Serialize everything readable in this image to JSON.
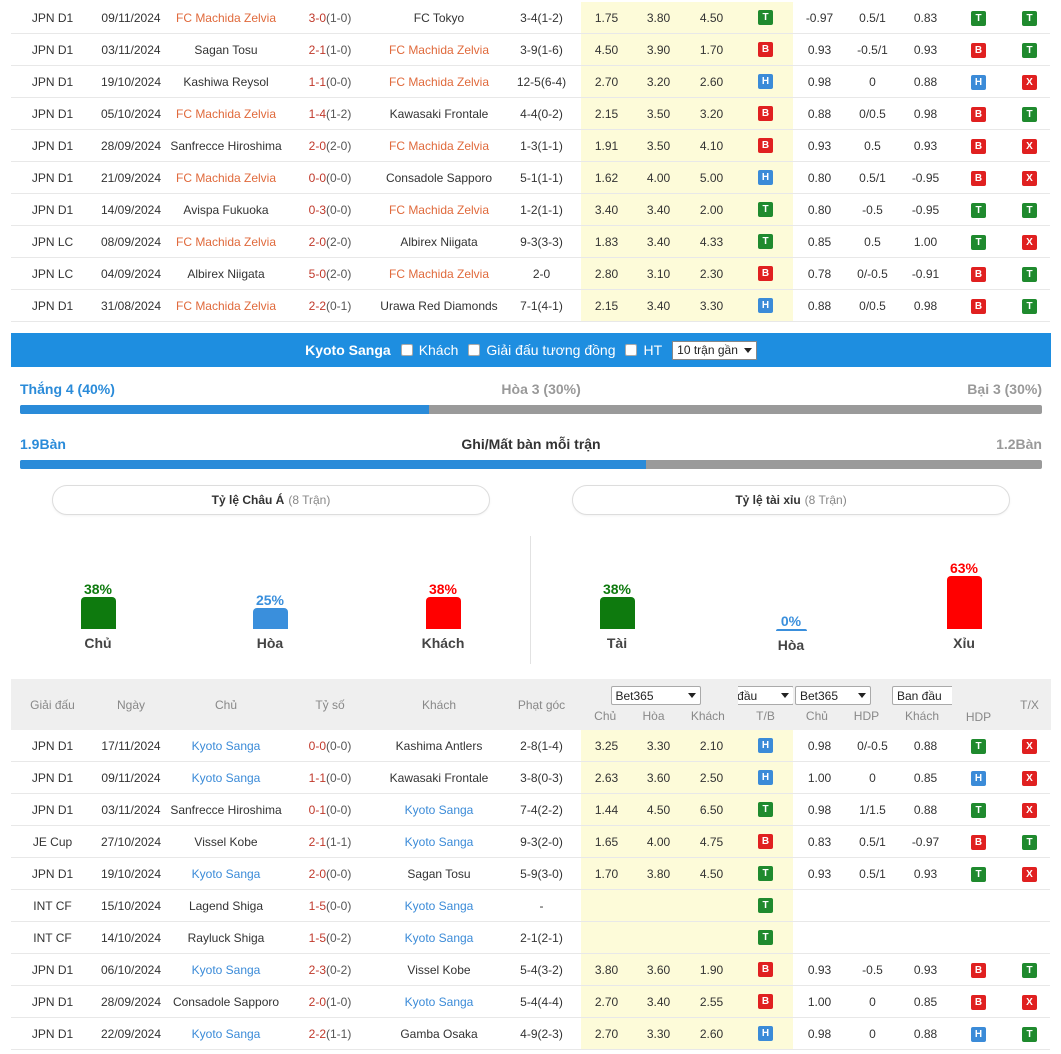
{
  "top_rows": [
    {
      "league": "JPN D1",
      "date": "09/11/2024",
      "home": "FC Machida Zelvia",
      "home_hl": true,
      "score": "3-0",
      "ht": "(1-0)",
      "away": "FC Tokyo",
      "away_hl": false,
      "corner": "3-4(1-2)",
      "o1": "1.75",
      "o2": "3.80",
      "o3": "4.50",
      "tb": "T",
      "h1": "-0.97",
      "h2": "0.5/1",
      "h3": "0.83",
      "hdp": "T",
      "tx": "T"
    },
    {
      "league": "JPN D1",
      "date": "03/11/2024",
      "home": "Sagan Tosu",
      "home_hl": false,
      "score": "2-1",
      "ht": "(1-0)",
      "away": "FC Machida Zelvia",
      "away_hl": true,
      "corner": "3-9(1-6)",
      "o1": "4.50",
      "o2": "3.90",
      "o3": "1.70",
      "tb": "B",
      "h1": "0.93",
      "h2": "-0.5/1",
      "h3": "0.93",
      "hdp": "B",
      "tx": "T"
    },
    {
      "league": "JPN D1",
      "date": "19/10/2024",
      "home": "Kashiwa Reysol",
      "home_hl": false,
      "score": "1-1",
      "ht": "(0-0)",
      "away": "FC Machida Zelvia",
      "away_hl": true,
      "corner": "12-5(6-4)",
      "o1": "2.70",
      "o2": "3.20",
      "o3": "2.60",
      "tb": "H",
      "h1": "0.98",
      "h2": "0",
      "h3": "0.88",
      "hdp": "H",
      "tx": "X"
    },
    {
      "league": "JPN D1",
      "date": "05/10/2024",
      "home": "FC Machida Zelvia",
      "home_hl": true,
      "score": "1-4",
      "ht": "(1-2)",
      "away": "Kawasaki Frontale",
      "away_hl": false,
      "corner": "4-4(0-2)",
      "o1": "2.15",
      "o2": "3.50",
      "o3": "3.20",
      "tb": "B",
      "h1": "0.88",
      "h2": "0/0.5",
      "h3": "0.98",
      "hdp": "B",
      "tx": "T"
    },
    {
      "league": "JPN D1",
      "date": "28/09/2024",
      "home": "Sanfrecce Hiroshima",
      "home_hl": false,
      "score": "2-0",
      "ht": "(2-0)",
      "away": "FC Machida Zelvia",
      "away_hl": true,
      "corner": "1-3(1-1)",
      "o1": "1.91",
      "o2": "3.50",
      "o3": "4.10",
      "tb": "B",
      "h1": "0.93",
      "h2": "0.5",
      "h3": "0.93",
      "hdp": "B",
      "tx": "X"
    },
    {
      "league": "JPN D1",
      "date": "21/09/2024",
      "home": "FC Machida Zelvia",
      "home_hl": true,
      "score": "0-0",
      "ht": "(0-0)",
      "away": "Consadole Sapporo",
      "away_hl": false,
      "corner": "5-1(1-1)",
      "o1": "1.62",
      "o2": "4.00",
      "o3": "5.00",
      "tb": "H",
      "h1": "0.80",
      "h2": "0.5/1",
      "h3": "-0.95",
      "hdp": "B",
      "tx": "X"
    },
    {
      "league": "JPN D1",
      "date": "14/09/2024",
      "home": "Avispa Fukuoka",
      "home_hl": false,
      "score": "0-3",
      "ht": "(0-0)",
      "away": "FC Machida Zelvia",
      "away_hl": true,
      "corner": "1-2(1-1)",
      "o1": "3.40",
      "o2": "3.40",
      "o3": "2.00",
      "tb": "T",
      "h1": "0.80",
      "h2": "-0.5",
      "h3": "-0.95",
      "hdp": "T",
      "tx": "T"
    },
    {
      "league": "JPN LC",
      "date": "08/09/2024",
      "home": "FC Machida Zelvia",
      "home_hl": true,
      "score": "2-0",
      "ht": "(2-0)",
      "away": "Albirex Niigata",
      "away_hl": false,
      "corner": "9-3(3-3)",
      "o1": "1.83",
      "o2": "3.40",
      "o3": "4.33",
      "tb": "T",
      "h1": "0.85",
      "h2": "0.5",
      "h3": "1.00",
      "hdp": "T",
      "tx": "X"
    },
    {
      "league": "JPN LC",
      "date": "04/09/2024",
      "home": "Albirex Niigata",
      "home_hl": false,
      "score": "5-0",
      "ht": "(2-0)",
      "away": "FC Machida Zelvia",
      "away_hl": true,
      "corner": "2-0",
      "o1": "2.80",
      "o2": "3.10",
      "o3": "2.30",
      "tb": "B",
      "h1": "0.78",
      "h2": "0/-0.5",
      "h3": "-0.91",
      "hdp": "B",
      "tx": "T"
    },
    {
      "league": "JPN D1",
      "date": "31/08/2024",
      "home": "FC Machida Zelvia",
      "home_hl": true,
      "score": "2-2",
      "ht": "(0-1)",
      "away": "Urawa Red Diamonds",
      "away_hl": false,
      "corner": "7-1(4-1)",
      "o1": "2.15",
      "o2": "3.40",
      "o3": "3.30",
      "tb": "H",
      "h1": "0.88",
      "h2": "0/0.5",
      "h3": "0.98",
      "hdp": "B",
      "tx": "T"
    }
  ],
  "section": {
    "team": "Kyoto Sanga",
    "opt_away": "Khách",
    "opt_similar": "Giải đấu tương đồng",
    "opt_ht": "HT",
    "select": "10 trận gần"
  },
  "summary": {
    "win": "Thắng 4 (40%)",
    "draw": "Hòa 3 (30%)",
    "loss": "Bại 3 (30%)",
    "win_fraction": 0.4,
    "goals_for": "1.9Bàn",
    "goals_title": "Ghi/Mất bàn mỗi trận",
    "goals_against": "1.2Bàn",
    "goals_fraction": 0.613
  },
  "asian": {
    "title": "Tỷ lệ Châu Á",
    "count": "(8 Trận)",
    "bars": [
      {
        "pct": "38%",
        "label": "Chủ",
        "value": 38,
        "color": "#0e7a0e"
      },
      {
        "pct": "25%",
        "label": "Hòa",
        "value": 25,
        "color": "#3a8fdc"
      },
      {
        "pct": "38%",
        "label": "Khách",
        "value": 38,
        "color": "#ff0000"
      }
    ]
  },
  "ou": {
    "title": "Tỷ lệ tài xỉu",
    "count": "(8 Trận)",
    "bars": [
      {
        "pct": "38%",
        "label": "Tài",
        "value": 38,
        "color": "#0e7a0e"
      },
      {
        "pct": "0%",
        "label": "Hòa",
        "value": 0,
        "color": "#3a8fdc"
      },
      {
        "pct": "63%",
        "label": "Xỉu",
        "value": 63,
        "color": "#ff0000"
      }
    ]
  },
  "thead": {
    "league": "Giải đấu",
    "date": "Ngày",
    "home": "Chủ",
    "score": "Tỷ số",
    "away": "Khách",
    "corner": "Phạt góc",
    "bk1": "Bet365",
    "bk2": "Ban đầu",
    "bk3": "Bet365",
    "bk4": "Ban đầu",
    "tx": "T/X",
    "s_home": "Chủ",
    "s_draw": "Hòa",
    "s_away": "Khách",
    "s_tb": "T/B",
    "s_home2": "Chủ",
    "s_hdp": "HDP",
    "s_away2": "Khách",
    "s_hdp2": "HDP"
  },
  "bottom_rows": [
    {
      "league": "JPN D1",
      "date": "17/11/2024",
      "home": "Kyoto Sanga",
      "home_hl": true,
      "score": "0-0",
      "ht": "(0-0)",
      "away": "Kashima Antlers",
      "away_hl": false,
      "corner": "2-8(1-4)",
      "o1": "3.25",
      "o2": "3.30",
      "o3": "2.10",
      "tb": "H",
      "h1": "0.98",
      "h2": "0/-0.5",
      "h3": "0.88",
      "hdp": "T",
      "tx": "X"
    },
    {
      "league": "JPN D1",
      "date": "09/11/2024",
      "home": "Kyoto Sanga",
      "home_hl": true,
      "score": "1-1",
      "ht": "(0-0)",
      "away": "Kawasaki Frontale",
      "away_hl": false,
      "corner": "3-8(0-3)",
      "o1": "2.63",
      "o2": "3.60",
      "o3": "2.50",
      "tb": "H",
      "h1": "1.00",
      "h2": "0",
      "h3": "0.85",
      "hdp": "H",
      "tx": "X"
    },
    {
      "league": "JPN D1",
      "date": "03/11/2024",
      "home": "Sanfrecce Hiroshima",
      "home_hl": false,
      "score": "0-1",
      "ht": "(0-0)",
      "away": "Kyoto Sanga",
      "away_hl": true,
      "corner": "7-4(2-2)",
      "o1": "1.44",
      "o2": "4.50",
      "o3": "6.50",
      "tb": "T",
      "h1": "0.98",
      "h2": "1/1.5",
      "h3": "0.88",
      "hdp": "T",
      "tx": "X"
    },
    {
      "league": "JE Cup",
      "date": "27/10/2024",
      "home": "Vissel Kobe",
      "home_hl": false,
      "score": "2-1",
      "ht": "(1-1)",
      "away": "Kyoto Sanga",
      "away_hl": true,
      "corner": "9-3(2-0)",
      "o1": "1.65",
      "o2": "4.00",
      "o3": "4.75",
      "tb": "B",
      "h1": "0.83",
      "h2": "0.5/1",
      "h3": "-0.97",
      "hdp": "B",
      "tx": "T"
    },
    {
      "league": "JPN D1",
      "date": "19/10/2024",
      "home": "Kyoto Sanga",
      "home_hl": true,
      "score": "2-0",
      "ht": "(0-0)",
      "away": "Sagan Tosu",
      "away_hl": false,
      "corner": "5-9(3-0)",
      "o1": "1.70",
      "o2": "3.80",
      "o3": "4.50",
      "tb": "T",
      "h1": "0.93",
      "h2": "0.5/1",
      "h3": "0.93",
      "hdp": "T",
      "tx": "X"
    },
    {
      "league": "INT CF",
      "date": "15/10/2024",
      "home": "Lagend Shiga",
      "home_hl": false,
      "score": "1-5",
      "ht": "(0-0)",
      "away": "Kyoto Sanga",
      "away_hl": true,
      "corner": "-",
      "o1": "",
      "o2": "",
      "o3": "",
      "tb": "T",
      "h1": "",
      "h2": "",
      "h3": "",
      "hdp": "",
      "tx": ""
    },
    {
      "league": "INT CF",
      "date": "14/10/2024",
      "home": "Rayluck Shiga",
      "home_hl": false,
      "score": "1-5",
      "ht": "(0-2)",
      "away": "Kyoto Sanga",
      "away_hl": true,
      "corner": "2-1(2-1)",
      "o1": "",
      "o2": "",
      "o3": "",
      "tb": "T",
      "h1": "",
      "h2": "",
      "h3": "",
      "hdp": "",
      "tx": ""
    },
    {
      "league": "JPN D1",
      "date": "06/10/2024",
      "home": "Kyoto Sanga",
      "home_hl": true,
      "score": "2-3",
      "ht": "(0-2)",
      "away": "Vissel Kobe",
      "away_hl": false,
      "corner": "5-4(3-2)",
      "o1": "3.80",
      "o2": "3.60",
      "o3": "1.90",
      "tb": "B",
      "h1": "0.93",
      "h2": "-0.5",
      "h3": "0.93",
      "hdp": "B",
      "tx": "T"
    },
    {
      "league": "JPN D1",
      "date": "28/09/2024",
      "home": "Consadole Sapporo",
      "home_hl": false,
      "score": "2-0",
      "ht": "(1-0)",
      "away": "Kyoto Sanga",
      "away_hl": true,
      "corner": "5-4(4-4)",
      "o1": "2.70",
      "o2": "3.40",
      "o3": "2.55",
      "tb": "B",
      "h1": "1.00",
      "h2": "0",
      "h3": "0.85",
      "hdp": "B",
      "tx": "X"
    },
    {
      "league": "JPN D1",
      "date": "22/09/2024",
      "home": "Kyoto Sanga",
      "home_hl": true,
      "score": "2-2",
      "ht": "(1-1)",
      "away": "Gamba Osaka",
      "away_hl": false,
      "corner": "4-9(2-3)",
      "o1": "2.70",
      "o2": "3.30",
      "o3": "2.60",
      "tb": "H",
      "h1": "0.98",
      "h2": "0",
      "h3": "0.88",
      "hdp": "H",
      "tx": "T"
    }
  ]
}
